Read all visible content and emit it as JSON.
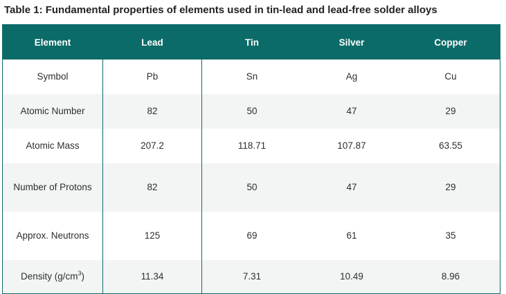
{
  "caption": "Table 1: Fundamental properties of elements used in tin-lead and lead-free solder alloys",
  "table": {
    "headers": [
      "Element",
      "Lead",
      "Tin",
      "Silver",
      "Copper"
    ],
    "rows": [
      {
        "label": "Symbol",
        "values": [
          "Pb",
          "Sn",
          "Ag",
          "Cu"
        ]
      },
      {
        "label": "Atomic Number",
        "values": [
          "82",
          "50",
          "47",
          "29"
        ]
      },
      {
        "label": "Atomic Mass",
        "values": [
          "207.2",
          "118.71",
          "107.87",
          "63.55"
        ]
      },
      {
        "label": "Number of Protons",
        "values": [
          "82",
          "50",
          "47",
          "29"
        ]
      },
      {
        "label": "Approx. Neutrons",
        "values": [
          "125",
          "69",
          "61",
          "35"
        ]
      },
      {
        "label_prefix": "Density (g/cm",
        "label_sup": "3",
        "label_suffix": ")",
        "values": [
          "11.34",
          "7.31",
          "10.49",
          "8.96"
        ]
      }
    ]
  },
  "colors": {
    "header_bg": "#0b6b68",
    "header_text": "#ffffff",
    "alt_row_bg": "#f2f5f4"
  }
}
